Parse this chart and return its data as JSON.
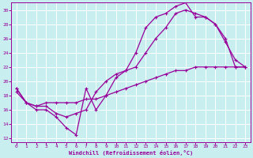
{
  "title": "",
  "xlabel": "Windchill (Refroidissement éolien,°C)",
  "ylabel": "",
  "bg_color": "#c8eef0",
  "grid_color": "#b0d8dc",
  "line_color": "#990099",
  "xlim": [
    -0.5,
    23.5
  ],
  "ylim": [
    11.5,
    31.0
  ],
  "xticks": [
    0,
    1,
    2,
    3,
    4,
    5,
    6,
    7,
    8,
    9,
    10,
    11,
    12,
    13,
    14,
    15,
    16,
    17,
    18,
    19,
    20,
    21,
    22,
    23
  ],
  "yticks": [
    12,
    14,
    16,
    18,
    20,
    22,
    24,
    26,
    28,
    30
  ],
  "curve1_x": [
    0,
    1,
    2,
    3,
    4,
    5,
    6,
    7,
    8,
    9,
    10,
    11,
    12,
    13,
    14,
    15,
    16,
    17,
    18,
    19,
    20,
    21,
    22,
    23
  ],
  "curve1_y": [
    19.0,
    17.0,
    16.0,
    16.0,
    15.0,
    13.5,
    12.5,
    19.0,
    16.0,
    18.0,
    20.5,
    21.5,
    24.0,
    27.5,
    29.0,
    29.5,
    30.5,
    31.0,
    29.0,
    29.0,
    28.0,
    25.5,
    23.0,
    22.0
  ],
  "curve2_x": [
    0,
    1,
    2,
    3,
    4,
    5,
    6,
    7,
    8,
    9,
    10,
    11,
    12,
    13,
    14,
    15,
    16,
    17,
    18,
    19,
    20,
    21,
    22,
    23
  ],
  "curve2_y": [
    19.0,
    17.0,
    16.5,
    16.5,
    15.5,
    15.0,
    15.5,
    16.0,
    18.5,
    20.0,
    21.0,
    21.5,
    22.0,
    24.0,
    26.0,
    27.5,
    29.5,
    30.0,
    29.5,
    29.0,
    28.0,
    26.0,
    22.0,
    22.0
  ],
  "curve3_x": [
    0,
    1,
    2,
    3,
    4,
    5,
    6,
    7,
    8,
    9,
    10,
    11,
    12,
    13,
    14,
    15,
    16,
    17,
    18,
    19,
    20,
    21,
    22,
    23
  ],
  "curve3_y": [
    18.5,
    17.0,
    16.5,
    17.0,
    17.0,
    17.0,
    17.0,
    17.5,
    17.5,
    18.0,
    18.5,
    19.0,
    19.5,
    20.0,
    20.5,
    21.0,
    21.5,
    21.5,
    22.0,
    22.0,
    22.0,
    22.0,
    22.0,
    22.0
  ]
}
